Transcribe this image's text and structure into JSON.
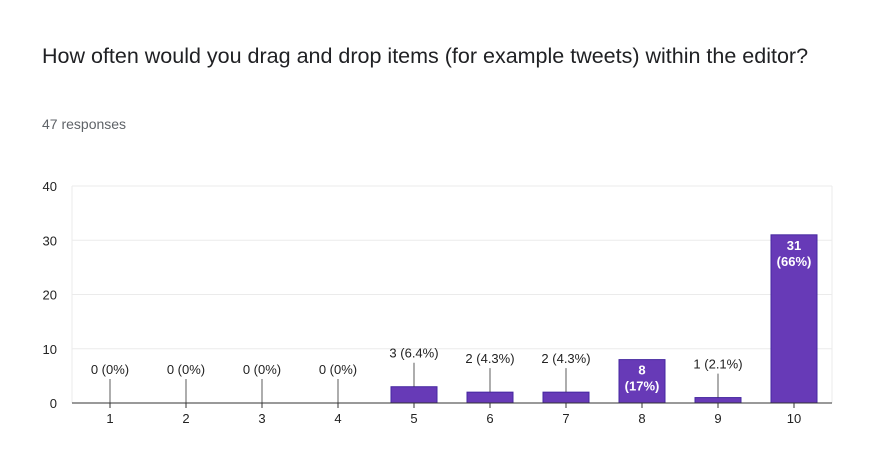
{
  "title": "How often would you drag and drop items (for example tweets) within the editor?",
  "responses": "47 responses",
  "colors": {
    "bar": "#673ab7",
    "bar_edge": "#4527a0",
    "grid": "#ebebeb",
    "axis": "#333333",
    "text": "#222222",
    "label_inside": "#ffffff"
  },
  "chart_data": {
    "type": "bar",
    "categories": [
      "1",
      "2",
      "3",
      "4",
      "5",
      "6",
      "7",
      "8",
      "9",
      "10"
    ],
    "values": [
      0,
      0,
      0,
      0,
      3,
      2,
      2,
      8,
      1,
      31
    ],
    "labels": [
      "0 (0%)",
      "0 (0%)",
      "0 (0%)",
      "0 (0%)",
      "3 (6.4%)",
      "2 (4.3%)",
      "2 (4.3%)",
      "8\n(17%)",
      "1 (2.1%)",
      "31\n(66%)"
    ],
    "label_inside": [
      false,
      false,
      false,
      false,
      false,
      false,
      false,
      true,
      false,
      true
    ],
    "yticks": [
      0,
      10,
      20,
      30,
      40
    ],
    "ylim": [
      0,
      40
    ],
    "grid": true,
    "legend": "none"
  }
}
